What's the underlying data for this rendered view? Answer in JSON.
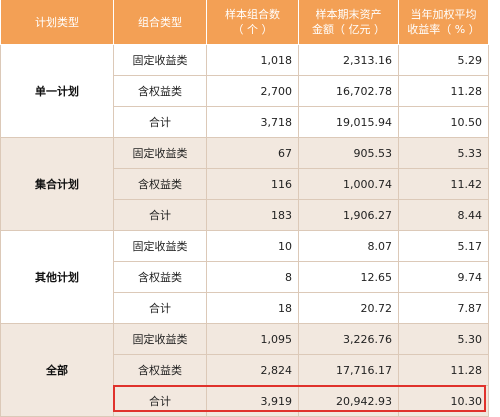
{
  "header": {
    "col1": "计划类型",
    "col2": "组合类型",
    "col3_line1": "样本组合数",
    "col3_line2": "（ 个 ）",
    "col4_line1": "样本期末资产",
    "col4_line2": "金额（ 亿元 ）",
    "col5_line1": "当年加权平均",
    "col5_line2": "收益率（ % ）"
  },
  "groups": [
    {
      "plan": "单一计划",
      "rows": [
        {
          "type": "固定收益类",
          "count": "1,018",
          "assets": "2,313.16",
          "yield": "5.29"
        },
        {
          "type": "含权益类",
          "count": "2,700",
          "assets": "16,702.78",
          "yield": "11.28"
        },
        {
          "type": "合计",
          "count": "3,718",
          "assets": "19,015.94",
          "yield": "10.50"
        }
      ]
    },
    {
      "plan": "集合计划",
      "rows": [
        {
          "type": "固定收益类",
          "count": "67",
          "assets": "905.53",
          "yield": "5.33"
        },
        {
          "type": "含权益类",
          "count": "116",
          "assets": "1,000.74",
          "yield": "11.42"
        },
        {
          "type": "合计",
          "count": "183",
          "assets": "1,906.27",
          "yield": "8.44"
        }
      ]
    },
    {
      "plan": "其他计划",
      "rows": [
        {
          "type": "固定收益类",
          "count": "10",
          "assets": "8.07",
          "yield": "5.17"
        },
        {
          "type": "含权益类",
          "count": "8",
          "assets": "12.65",
          "yield": "9.74"
        },
        {
          "type": "合计",
          "count": "18",
          "assets": "20.72",
          "yield": "7.87"
        }
      ]
    },
    {
      "plan": "全部",
      "rows": [
        {
          "type": "固定收益类",
          "count": "1,095",
          "assets": "3,226.76",
          "yield": "5.30"
        },
        {
          "type": "含权益类",
          "count": "2,824",
          "assets": "17,716.17",
          "yield": "11.28"
        },
        {
          "type": "合计",
          "count": "3,919",
          "assets": "20,942.93",
          "yield": "10.30"
        }
      ]
    }
  ],
  "colors": {
    "header_bg": "#f3a055",
    "shaded_group_bg": "#f2e8df",
    "highlight_border": "#e0322c"
  }
}
